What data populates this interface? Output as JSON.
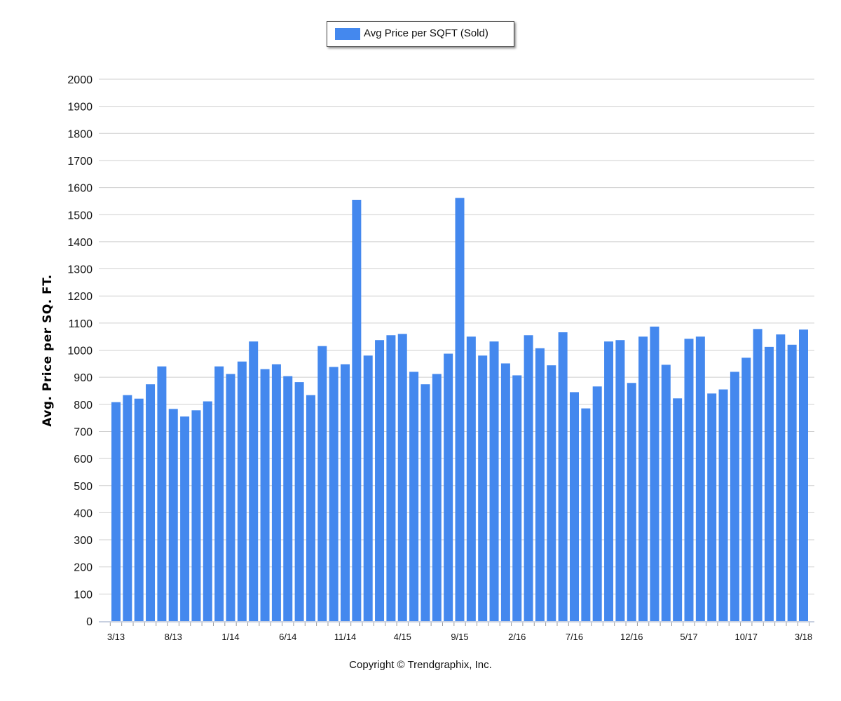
{
  "chart_data": {
    "type": "bar",
    "legend": {
      "label": "Avg Price per SQFT (Sold)",
      "position": "top-center"
    },
    "ylabel": "Avg. Price per SQ. FT.",
    "xlabel": "",
    "ylim": [
      0,
      2000
    ],
    "yticks": [
      "0",
      "100",
      "200",
      "300",
      "400",
      "500",
      "600",
      "700",
      "800",
      "900",
      "1000",
      "1100",
      "1200",
      "1300",
      "1400",
      "1500",
      "1600",
      "1700",
      "1800",
      "1900",
      "2000"
    ],
    "grid": true,
    "bar_color": "#4488ee",
    "x_tick_labels": [
      {
        "index": 0,
        "label": "3/13"
      },
      {
        "index": 5,
        "label": "8/13"
      },
      {
        "index": 10,
        "label": "1/14"
      },
      {
        "index": 15,
        "label": "6/14"
      },
      {
        "index": 20,
        "label": "11/14"
      },
      {
        "index": 25,
        "label": "4/15"
      },
      {
        "index": 30,
        "label": "9/15"
      },
      {
        "index": 35,
        "label": "2/16"
      },
      {
        "index": 40,
        "label": "7/16"
      },
      {
        "index": 45,
        "label": "12/16"
      },
      {
        "index": 50,
        "label": "5/17"
      },
      {
        "index": 55,
        "label": "10/17"
      },
      {
        "index": 60,
        "label": "3/18"
      }
    ],
    "categories": [
      "3/13",
      "4/13",
      "5/13",
      "6/13",
      "7/13",
      "8/13",
      "9/13",
      "10/13",
      "11/13",
      "12/13",
      "1/14",
      "2/14",
      "3/14",
      "4/14",
      "5/14",
      "6/14",
      "7/14",
      "8/14",
      "9/14",
      "10/14",
      "11/14",
      "12/14",
      "1/15",
      "2/15",
      "3/15",
      "4/15",
      "5/15",
      "6/15",
      "7/15",
      "8/15",
      "9/15",
      "10/15",
      "11/15",
      "12/15",
      "1/16",
      "2/16",
      "3/16",
      "4/16",
      "5/16",
      "6/16",
      "7/16",
      "8/16",
      "9/16",
      "10/16",
      "11/16",
      "12/16",
      "1/17",
      "2/17",
      "3/17",
      "4/17",
      "5/17",
      "6/17",
      "7/17",
      "8/17",
      "9/17",
      "10/17",
      "11/17",
      "12/17",
      "1/18",
      "2/18",
      "3/18"
    ],
    "values": [
      808,
      834,
      821,
      874,
      940,
      783,
      755,
      778,
      811,
      940,
      912,
      958,
      1032,
      930,
      948,
      904,
      882,
      834,
      1015,
      938,
      948,
      1555,
      980,
      1037,
      1055,
      1060,
      920,
      874,
      912,
      987,
      1562,
      1050,
      980,
      1032,
      951,
      907,
      1055,
      1007,
      944,
      1066,
      845,
      785,
      866,
      1032,
      1037,
      879,
      1050,
      1087,
      946,
      822,
      1042,
      1050,
      840,
      855,
      920,
      972,
      1078,
      1012,
      1058,
      1020,
      1076
    ]
  },
  "footer": {
    "copyright": "Copyright © Trendgraphix, Inc."
  }
}
